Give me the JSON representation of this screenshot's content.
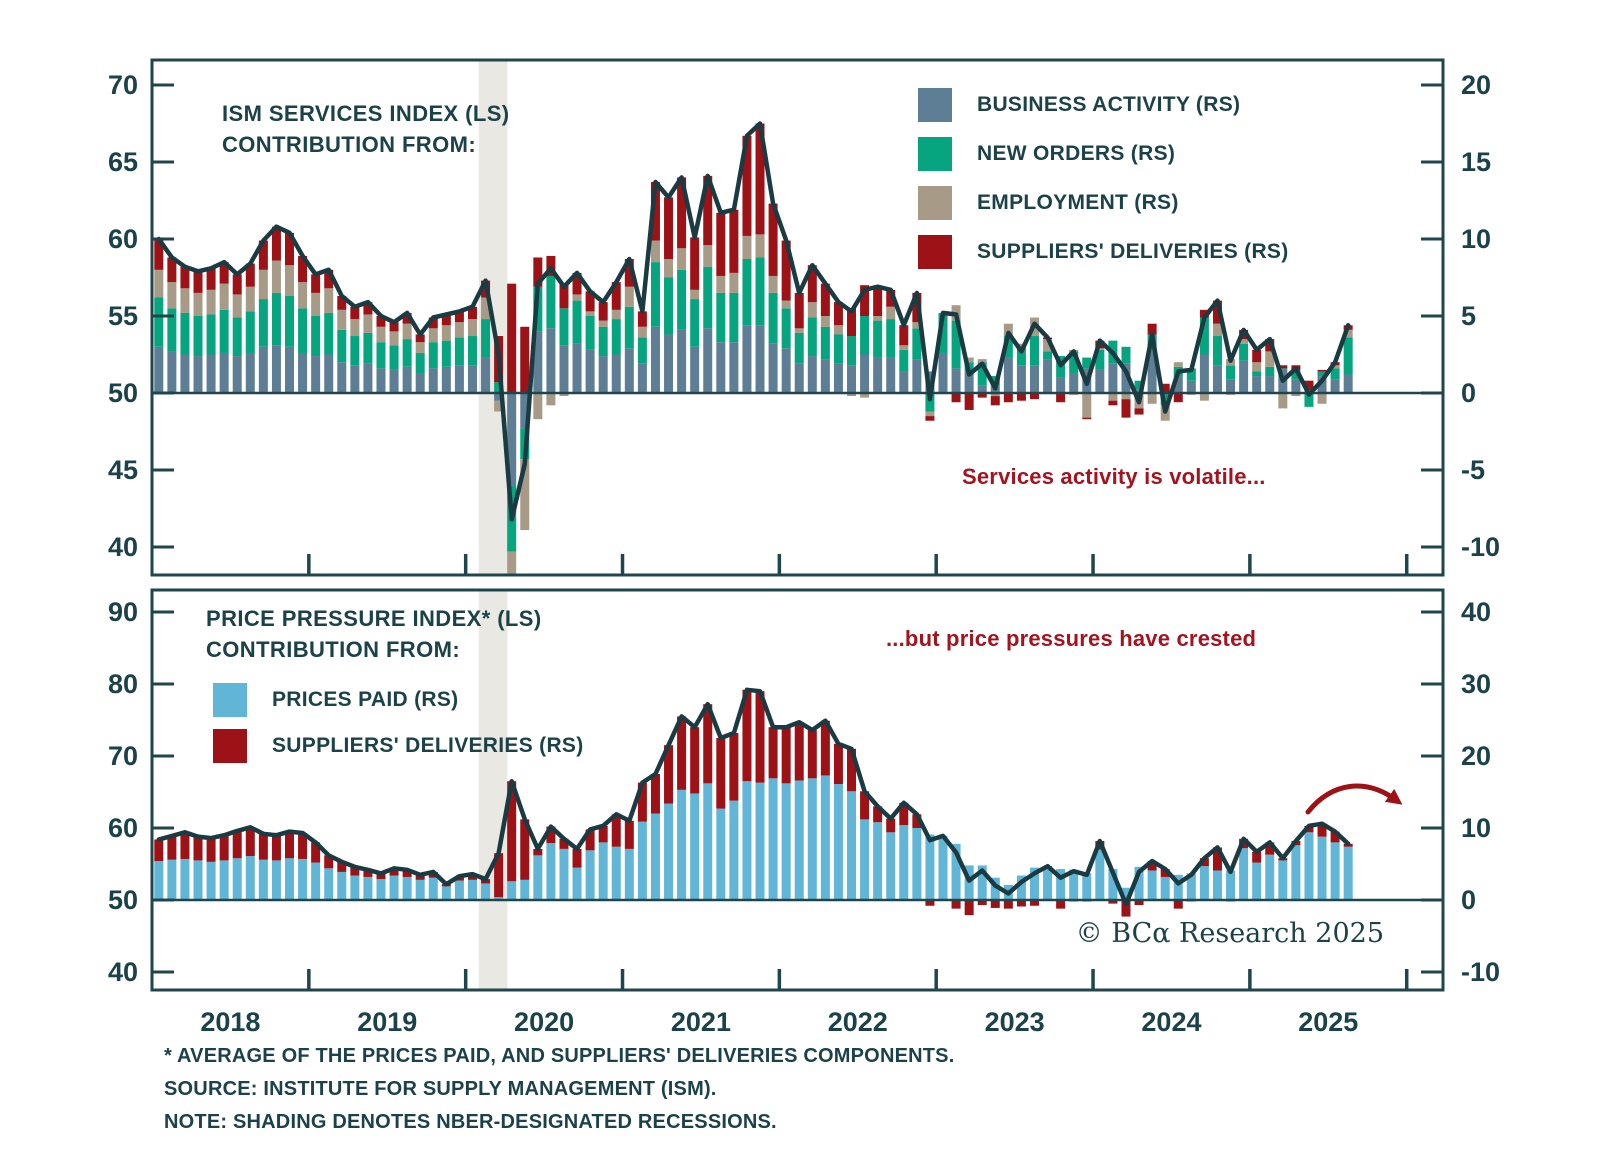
{
  "page": {
    "watermark": "© BCα Research 2025",
    "footnotes": [
      "* AVERAGE OF THE PRICES PAID, AND SUPPLIERS' DELIVERIES COMPONENTS.",
      "SOURCE: INSTITUTE FOR SUPPLY MANAGEMENT (ISM).",
      "NOTE: SHADING DENOTES NBER-DESIGNATED RECESSIONS."
    ]
  },
  "colors": {
    "text": "#1c4249",
    "frame": "#20464d",
    "line": "#1b3b43",
    "annotation": "#a5131f",
    "recession_shading": "#e9e8e2",
    "business_activity": "#5e7e96",
    "new_orders": "#06a47f",
    "employment": "#a79a87",
    "suppliers_deliveries": "#9d1216",
    "prices_paid": "#61b6d7"
  },
  "chart_data": [
    {
      "type": "bar",
      "subtype": "stacked-bars-with-line-overlay",
      "title": "ISM SERVICES INDEX (LS)\nCONTRIBUTION FROM:",
      "annotation": "Services activity is volatile...",
      "x_start": "2018-01",
      "x_end": "2025-08",
      "freq": "monthly",
      "x_year_labels": [
        "2018",
        "2019",
        "2020",
        "2021",
        "2022",
        "2023",
        "2024",
        "2025"
      ],
      "axis_left": {
        "ticks": [
          70,
          65,
          60,
          55,
          50,
          45,
          40
        ],
        "range": [
          38.5,
          71.5
        ]
      },
      "axis_right": {
        "ticks": [
          20,
          15,
          10,
          5,
          0,
          -5,
          -10
        ],
        "range": [
          -11.5,
          21.5
        ]
      },
      "recession_shading": {
        "from": "2020-02",
        "to": "2020-04"
      },
      "line": {
        "name": "ISM SERVICES INDEX (LS)",
        "color": "#1b3b43",
        "values": [
          60.0,
          58.8,
          58.2,
          57.9,
          58.1,
          58.5,
          57.7,
          58.4,
          59.9,
          60.8,
          60.4,
          58.9,
          57.7,
          58.0,
          56.3,
          55.6,
          55.9,
          55.0,
          54.6,
          55.2,
          53.8,
          54.9,
          55.1,
          55.3,
          55.6,
          57.3,
          52.5,
          41.8,
          45.4,
          57.1,
          58.1,
          56.9,
          57.8,
          56.6,
          55.9,
          57.2,
          58.7,
          55.3,
          63.7,
          62.7,
          64.0,
          60.1,
          64.1,
          61.7,
          61.9,
          66.7,
          67.5,
          62.3,
          59.9,
          56.5,
          58.3,
          57.1,
          55.9,
          55.3,
          56.7,
          56.9,
          56.7,
          54.4,
          56.5,
          49.6,
          55.2,
          55.1,
          51.2,
          51.9,
          50.3,
          53.9,
          52.7,
          54.5,
          53.6,
          51.8,
          52.7,
          50.6,
          53.4,
          52.6,
          51.4,
          49.4,
          53.8,
          48.8,
          51.4,
          51.5,
          54.9,
          56.0,
          52.1,
          54.1,
          52.8,
          53.5,
          50.8,
          51.6,
          49.9,
          50.8,
          52.0,
          54.4
        ]
      },
      "series": [
        {
          "name": "BUSINESS ACTIVITY (RS)",
          "color": "#5e7e96",
          "values": [
            3.0,
            2.7,
            2.5,
            2.4,
            2.5,
            2.6,
            2.4,
            2.6,
            3.0,
            3.1,
            3.0,
            2.6,
            2.4,
            2.5,
            2.0,
            1.8,
            1.9,
            1.6,
            1.5,
            1.7,
            1.3,
            1.6,
            1.7,
            1.8,
            1.8,
            2.3,
            -0.5,
            -6.0,
            -2.3,
            4.0,
            4.2,
            3.1,
            3.2,
            2.8,
            2.4,
            2.5,
            2.9,
            1.9,
            4.3,
            3.8,
            4.1,
            3.0,
            4.2,
            3.3,
            3.3,
            4.4,
            4.4,
            3.2,
            2.9,
            1.9,
            2.4,
            2.2,
            1.9,
            1.8,
            2.5,
            2.3,
            2.3,
            1.4,
            2.2,
            1.4,
            2.6,
            1.6,
            1.4,
            0.5,
            0.4,
            2.3,
            1.8,
            1.8,
            2.2,
            1.0,
            1.3,
            1.6,
            1.5,
            1.9,
            1.9,
            0.2,
            2.8,
            -0.1,
            1.1,
            0.8,
            2.5,
            1.8,
            0.9,
            2.1,
            1.1,
            1.1,
            1.5,
            0.9,
            0.0,
            1.1,
            0.9,
            1.2
          ]
        },
        {
          "name": "NEW ORDERS (RS)",
          "color": "#06a47f",
          "values": [
            3.2,
            2.8,
            2.7,
            2.6,
            2.6,
            2.8,
            2.5,
            2.7,
            3.1,
            3.4,
            3.3,
            2.9,
            2.6,
            2.7,
            2.1,
            1.9,
            2.0,
            1.7,
            1.6,
            1.8,
            1.3,
            1.7,
            1.7,
            1.8,
            1.9,
            2.5,
            0.7,
            -4.3,
            -2.0,
            2.9,
            3.4,
            2.4,
            2.8,
            2.2,
            1.9,
            2.3,
            2.7,
            1.7,
            4.2,
            3.7,
            3.9,
            3.1,
            4.0,
            3.2,
            3.2,
            4.3,
            4.4,
            3.3,
            2.6,
            2.0,
            2.5,
            2.1,
            1.9,
            1.9,
            2.5,
            2.4,
            2.5,
            1.4,
            2.0,
            -1.2,
            2.6,
            3.1,
            0.6,
            1.5,
            0.7,
            1.4,
            1.2,
            1.9,
            0.5,
            1.4,
            1.4,
            0.7,
            1.3,
            1.5,
            1.1,
            0.6,
            1.0,
            -0.7,
            0.6,
            0.8,
            2.4,
            1.9,
            0.9,
            1.1,
            0.3,
            0.6,
            0.1,
            0.6,
            -0.9,
            0.3,
            0.7,
            2.4
          ]
        },
        {
          "name": "EMPLOYMENT (RS)",
          "color": "#a79a87",
          "values": [
            1.8,
            1.7,
            1.6,
            1.5,
            1.6,
            1.7,
            1.5,
            1.6,
            1.9,
            2.1,
            2.0,
            1.7,
            1.5,
            1.6,
            1.3,
            1.1,
            1.2,
            1.0,
            0.9,
            1.0,
            0.7,
            0.9,
            1.0,
            1.0,
            1.1,
            1.4,
            -0.7,
            -5.0,
            -4.6,
            -1.7,
            -0.8,
            -0.2,
            0.4,
            0.3,
            0.4,
            0.6,
            1.3,
            0.7,
            1.4,
            1.2,
            1.4,
            0.6,
            1.4,
            1.1,
            1.3,
            1.5,
            1.5,
            1.1,
            0.5,
            0.3,
            1.0,
            0.7,
            0.6,
            -0.2,
            -0.3,
            0.3,
            0.8,
            0.3,
            0.4,
            -0.3,
            0.0,
            1.0,
            0.3,
            0.2,
            -0.2,
            0.8,
            0.2,
            1.2,
            0.8,
            0.0,
            0.1,
            -1.6,
            0.1,
            -0.5,
            -0.4,
            -1.0,
            -0.7,
            -1.0,
            0.3,
            0.0,
            -0.5,
            0.8,
            0.4,
            0.3,
            0.6,
            1.0,
            -1.0,
            -0.2,
            0.2,
            -0.7,
            0.2,
            0.5
          ]
        },
        {
          "name": "SUPPLIERS' DELIVERIES (RS)",
          "color": "#9d1216",
          "values": [
            2.0,
            1.6,
            1.4,
            1.4,
            1.4,
            1.4,
            1.3,
            1.5,
            1.9,
            2.2,
            2.1,
            1.7,
            1.2,
            1.2,
            0.9,
            0.8,
            0.8,
            0.7,
            0.6,
            0.7,
            0.5,
            0.7,
            0.7,
            0.7,
            0.8,
            1.1,
            3.0,
            7.1,
            4.3,
            1.9,
            1.3,
            1.6,
            1.4,
            1.3,
            1.2,
            1.8,
            1.8,
            1.0,
            3.8,
            4.0,
            4.6,
            3.4,
            4.5,
            4.1,
            4.1,
            6.5,
            7.2,
            4.7,
            3.9,
            2.3,
            2.4,
            2.1,
            1.5,
            1.8,
            2.0,
            1.9,
            1.1,
            1.3,
            1.9,
            -0.3,
            0.0,
            -0.6,
            -1.1,
            -0.3,
            -0.6,
            -0.6,
            -0.5,
            -0.4,
            0.1,
            -0.6,
            -0.1,
            -0.1,
            0.5,
            -0.3,
            -1.2,
            -0.4,
            0.7,
            0.6,
            -0.6,
            -0.1,
            0.5,
            1.5,
            -0.1,
            0.6,
            0.8,
            0.8,
            0.2,
            0.3,
            0.6,
            0.1,
            0.2,
            0.3
          ]
        }
      ]
    },
    {
      "type": "bar",
      "subtype": "stacked-bars-with-line-overlay",
      "title": "PRICE PRESSURE INDEX* (LS)\nCONTRIBUTION FROM:",
      "annotation": "...but price pressures have crested",
      "x_start": "2018-01",
      "x_end": "2025-08",
      "freq": "monthly",
      "x_year_labels": [
        "2018",
        "2019",
        "2020",
        "2021",
        "2022",
        "2023",
        "2024",
        "2025"
      ],
      "axis_left": {
        "ticks": [
          90,
          80,
          70,
          60,
          50,
          40
        ],
        "range": [
          37.5,
          95.5
        ]
      },
      "axis_right": {
        "ticks": [
          40,
          30,
          20,
          10,
          0,
          -10
        ],
        "range": [
          -12.5,
          45.5
        ]
      },
      "recession_shading": {
        "from": "2020-02",
        "to": "2020-04"
      },
      "line": {
        "name": "PRICE PRESSURE INDEX* (LS)",
        "color": "#1b3b43",
        "values": [
          58.4,
          58.9,
          59.4,
          58.8,
          58.6,
          59.0,
          59.6,
          60.1,
          59.2,
          59.0,
          59.5,
          59.3,
          58.0,
          56.2,
          55.3,
          54.6,
          54.2,
          53.7,
          54.4,
          54.2,
          53.5,
          53.9,
          52.2,
          53.3,
          53.6,
          52.9,
          56.5,
          66.5,
          61.2,
          57.1,
          60.2,
          58.5,
          57.1,
          59.8,
          60.3,
          61.9,
          61.0,
          66.3,
          67.5,
          71.5,
          75.5,
          74.0,
          77.2,
          72.5,
          73.2,
          79.2,
          79.0,
          74.0,
          74.0,
          74.7,
          73.6,
          74.9,
          71.7,
          71.0,
          65.1,
          63.0,
          61.3,
          63.5,
          61.9,
          58.3,
          58.9,
          56.6,
          52.7,
          54.1,
          52.0,
          50.9,
          52.5,
          53.7,
          54.7,
          53.1,
          54.0,
          53.5,
          58.2,
          53.8,
          49.4,
          53.9,
          55.4,
          54.3,
          52.3,
          53.5,
          55.8,
          57.3,
          53.9,
          58.5,
          56.7,
          58.0,
          55.8,
          58.2,
          60.3,
          60.6,
          59.5,
          57.8
        ]
      },
      "series": [
        {
          "name": "PRICES PAID (RS)",
          "color": "#61b6d7",
          "values": [
            5.4,
            5.6,
            5.7,
            5.5,
            5.3,
            5.5,
            5.8,
            6.1,
            5.6,
            5.5,
            5.8,
            5.7,
            5.2,
            4.4,
            3.9,
            3.4,
            3.2,
            2.9,
            3.4,
            3.2,
            2.8,
            3.1,
            1.9,
            2.7,
            2.8,
            2.3,
            0.4,
            2.6,
            2.8,
            6.2,
            7.9,
            7.1,
            4.5,
            6.9,
            8.0,
            7.4,
            7.1,
            10.9,
            12.0,
            13.4,
            15.3,
            14.8,
            16.2,
            12.7,
            13.8,
            16.5,
            16.3,
            16.9,
            16.2,
            16.6,
            16.9,
            17.3,
            16.1,
            15.1,
            11.2,
            10.8,
            9.4,
            10.4,
            10.0,
            9.1,
            8.9,
            7.8,
            4.8,
            4.8,
            3.1,
            2.1,
            3.4,
            4.5,
            4.5,
            4.3,
            4.2,
            3.7,
            7.0,
            4.3,
            1.7,
            4.6,
            4.1,
            3.2,
            3.5,
            3.7,
            4.7,
            4.1,
            4.1,
            7.2,
            5.2,
            6.3,
            5.5,
            7.6,
            9.4,
            8.8,
            8.0,
            7.4
          ]
        },
        {
          "name": "SUPPLIERS' DELIVERIES (RS)",
          "color": "#9d1216",
          "values": [
            3.0,
            3.3,
            3.7,
            3.3,
            3.3,
            3.5,
            3.8,
            4.0,
            3.6,
            3.5,
            3.7,
            3.6,
            2.8,
            1.8,
            1.4,
            1.2,
            1.0,
            0.8,
            1.0,
            1.0,
            0.7,
            0.8,
            0.3,
            0.6,
            0.8,
            0.6,
            6.1,
            13.9,
            8.4,
            0.9,
            2.3,
            1.4,
            2.6,
            2.9,
            2.3,
            4.5,
            3.9,
            5.4,
            5.5,
            8.1,
            10.2,
            9.2,
            11.0,
            9.8,
            9.4,
            12.7,
            12.7,
            7.1,
            7.8,
            8.1,
            6.7,
            7.6,
            5.6,
            5.9,
            3.9,
            2.2,
            1.9,
            3.1,
            1.9,
            -0.8,
            0.0,
            -1.2,
            -2.1,
            -0.7,
            -1.1,
            -1.2,
            -0.9,
            -0.8,
            0.2,
            -1.2,
            -0.2,
            -0.2,
            1.2,
            -0.5,
            -2.3,
            -0.7,
            1.3,
            1.1,
            -1.2,
            -0.2,
            1.1,
            3.2,
            -0.2,
            1.3,
            1.5,
            1.7,
            0.3,
            0.6,
            0.9,
            1.8,
            1.5,
            0.4
          ]
        }
      ]
    }
  ]
}
